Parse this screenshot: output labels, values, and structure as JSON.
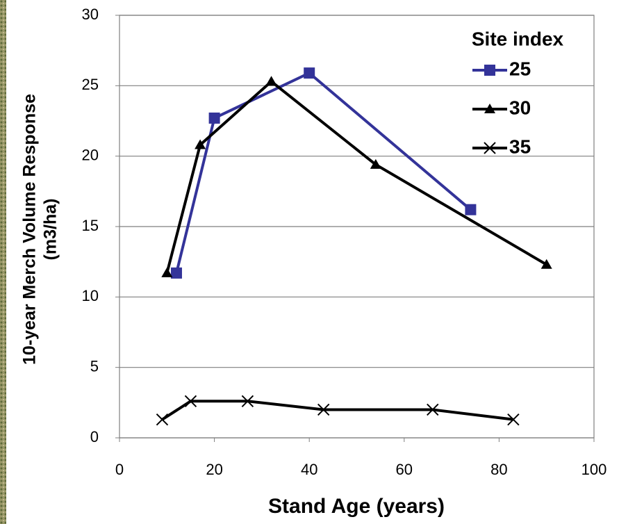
{
  "chart_data": {
    "type": "line",
    "x_label": "Stand Age (years)",
    "y_label": [
      "10-year Merch Volume Response",
      "(m3/ha)"
    ],
    "legend_title": "Site index",
    "legend_position": "upper right",
    "grid": true,
    "xlim": [
      0,
      100
    ],
    "xticks": [
      0,
      20,
      40,
      60,
      80,
      100
    ],
    "ylim": [
      0,
      30
    ],
    "yticks": [
      0,
      5,
      10,
      15,
      20,
      25,
      30
    ],
    "series": [
      {
        "name": "25",
        "color": "#333399",
        "marker": "square",
        "x": [
          12,
          20,
          40,
          74
        ],
        "values": [
          11.7,
          22.7,
          25.9,
          16.2
        ]
      },
      {
        "name": "30",
        "color": "#000000",
        "marker": "triangle",
        "x": [
          10,
          17,
          32,
          54,
          90
        ],
        "values": [
          11.7,
          20.8,
          25.3,
          19.4,
          12.3
        ]
      },
      {
        "name": "35",
        "color": "#000000",
        "marker": "cross",
        "x": [
          9,
          15,
          27,
          43,
          66,
          83
        ],
        "values": [
          1.3,
          2.6,
          2.6,
          2.0,
          2.0,
          1.3
        ]
      }
    ]
  }
}
